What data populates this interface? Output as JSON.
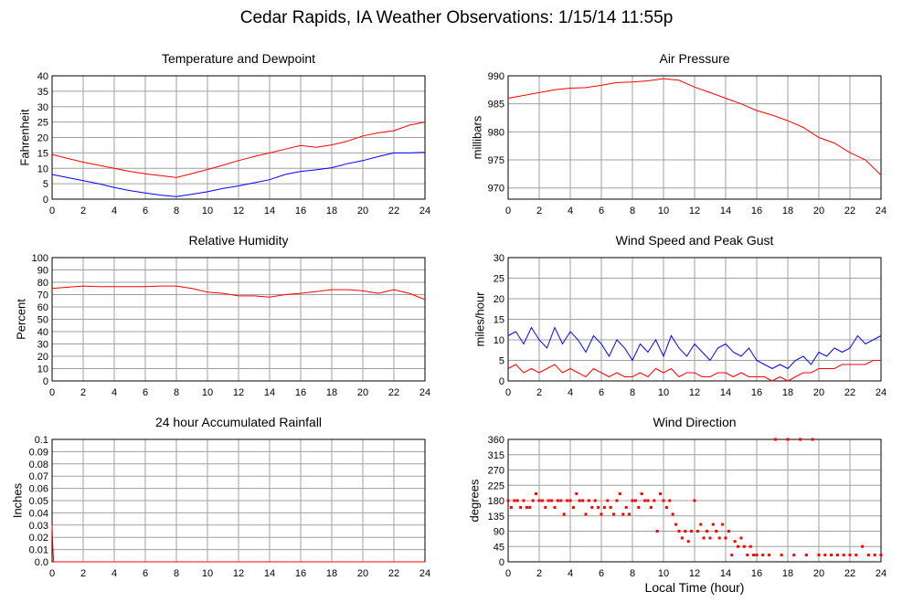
{
  "page": {
    "title": "Cedar Rapids, IA Weather Observations: 1/15/14 11:55p",
    "xaxis_label": "Local Time (hour)"
  },
  "colors": {
    "red": "#ff0000",
    "blue": "#0000ff",
    "grid": "#a0a0a0",
    "axis": "#000000"
  },
  "chart_data": [
    {
      "id": "temp",
      "type": "line",
      "title": "Temperature and Dewpoint",
      "ylabel": "Fahrenheit",
      "xlim": [
        0,
        24
      ],
      "ylim": [
        0,
        40
      ],
      "yticks": [
        0,
        5,
        10,
        15,
        20,
        25,
        30,
        35,
        40
      ],
      "xticks": [
        0,
        2,
        4,
        6,
        8,
        10,
        12,
        14,
        16,
        18,
        20,
        22,
        24
      ],
      "grid": true,
      "series": [
        {
          "color": "#ff0000",
          "x": [
            0,
            1,
            2,
            3,
            4,
            5,
            6,
            7,
            8,
            9,
            10,
            11,
            12,
            13,
            14,
            15,
            16,
            17,
            18,
            19,
            20,
            21,
            22,
            23,
            24
          ],
          "values": [
            14.5,
            13.2,
            12,
            11,
            10,
            9,
            8.2,
            7.6,
            7,
            8.3,
            9.6,
            11,
            12.5,
            13.8,
            15,
            16.2,
            17.4,
            16.8,
            17.6,
            18.8,
            20.5,
            21.5,
            22.2,
            24,
            25
          ]
        },
        {
          "color": "#0000ff",
          "x": [
            0,
            1,
            2,
            3,
            4,
            5,
            6,
            7,
            8,
            9,
            10,
            11,
            12,
            13,
            14,
            15,
            16,
            17,
            18,
            19,
            20,
            21,
            22,
            23,
            24
          ],
          "values": [
            8,
            7,
            6,
            5,
            3.8,
            2.8,
            2,
            1.3,
            0.8,
            1.6,
            2.4,
            3.5,
            4.3,
            5.3,
            6.3,
            8,
            9,
            9.5,
            10.2,
            11.5,
            12.5,
            13.8,
            15,
            15,
            15.2
          ]
        }
      ]
    },
    {
      "id": "pressure",
      "type": "line",
      "title": "Air Pressure",
      "ylabel": "millibars",
      "xlim": [
        0,
        24
      ],
      "ylim": [
        968,
        990
      ],
      "yticks": [
        970,
        975,
        980,
        985,
        990
      ],
      "xticks": [
        0,
        2,
        4,
        6,
        8,
        10,
        12,
        14,
        16,
        18,
        20,
        22,
        24
      ],
      "grid": true,
      "series": [
        {
          "color": "#ff0000",
          "x": [
            0,
            1,
            2,
            3,
            4,
            5,
            6,
            7,
            8,
            9,
            10,
            11,
            12,
            13,
            14,
            15,
            16,
            17,
            18,
            19,
            20,
            21,
            22,
            23,
            24
          ],
          "values": [
            986,
            986.5,
            987,
            987.5,
            987.8,
            987.9,
            988.3,
            988.8,
            988.9,
            989.1,
            989.5,
            989.2,
            988,
            987,
            986,
            985,
            983.8,
            983,
            982,
            980.8,
            979,
            978,
            976.3,
            975,
            972.3
          ]
        }
      ]
    },
    {
      "id": "humidity",
      "type": "line",
      "title": "Relative Humidity",
      "ylabel": "Percent",
      "xlim": [
        0,
        24
      ],
      "ylim": [
        0,
        100
      ],
      "yticks": [
        0,
        10,
        20,
        30,
        40,
        50,
        60,
        70,
        80,
        90,
        100
      ],
      "xticks": [
        0,
        2,
        4,
        6,
        8,
        10,
        12,
        14,
        16,
        18,
        20,
        22,
        24
      ],
      "grid": true,
      "series": [
        {
          "color": "#ff0000",
          "x": [
            0,
            1,
            2,
            3,
            4,
            5,
            6,
            7,
            8,
            9,
            10,
            11,
            12,
            13,
            14,
            15,
            16,
            17,
            18,
            19,
            20,
            21,
            22,
            23,
            24
          ],
          "values": [
            75,
            76,
            77,
            76.5,
            76.5,
            76.5,
            76.5,
            77,
            77,
            75,
            72,
            71,
            69,
            69,
            68,
            70,
            71,
            72.5,
            74,
            74,
            73,
            71,
            74,
            71,
            66
          ]
        }
      ]
    },
    {
      "id": "wind",
      "type": "line",
      "title": "Wind Speed and Peak Gust",
      "ylabel": "miles/hour",
      "xlim": [
        0,
        24
      ],
      "ylim": [
        0,
        30
      ],
      "yticks": [
        0,
        5,
        10,
        15,
        20,
        25,
        30
      ],
      "xticks": [
        0,
        2,
        4,
        6,
        8,
        10,
        12,
        14,
        16,
        18,
        20,
        22,
        24
      ],
      "grid": true,
      "series": [
        {
          "color": "#0000ff",
          "x": [
            0,
            0.5,
            1,
            1.5,
            2,
            2.5,
            3,
            3.5,
            4,
            4.5,
            5,
            5.5,
            6,
            6.5,
            7,
            7.5,
            8,
            8.5,
            9,
            9.5,
            10,
            10.5,
            11,
            11.5,
            12,
            12.5,
            13,
            13.5,
            14,
            14.5,
            15,
            15.5,
            16,
            16.5,
            17,
            17.5,
            18,
            18.5,
            19,
            19.5,
            20,
            20.5,
            21,
            21.5,
            22,
            22.5,
            23,
            23.5,
            24
          ],
          "values": [
            11,
            12,
            9,
            13,
            10,
            8,
            13,
            9,
            12,
            10,
            7,
            11,
            9,
            6,
            10,
            8,
            5,
            9,
            7,
            10,
            6,
            11,
            8,
            6,
            9,
            7,
            5,
            8,
            9,
            7,
            6,
            8,
            5,
            4,
            3,
            4,
            3,
            5,
            6,
            4,
            7,
            6,
            8,
            7,
            8,
            11,
            9,
            10,
            11
          ]
        },
        {
          "color": "#ff0000",
          "x": [
            0,
            0.5,
            1,
            1.5,
            2,
            2.5,
            3,
            3.5,
            4,
            4.5,
            5,
            5.5,
            6,
            6.5,
            7,
            7.5,
            8,
            8.5,
            9,
            9.5,
            10,
            10.5,
            11,
            11.5,
            12,
            12.5,
            13,
            13.5,
            14,
            14.5,
            15,
            15.5,
            16,
            16.5,
            17,
            17.5,
            18,
            18.5,
            19,
            19.5,
            20,
            20.5,
            21,
            21.5,
            22,
            22.5,
            23,
            23.5,
            24
          ],
          "values": [
            3,
            4,
            2,
            3,
            2,
            3,
            4,
            2,
            3,
            2,
            1,
            3,
            2,
            1,
            2,
            1,
            1,
            2,
            1,
            3,
            2,
            3,
            1,
            2,
            2,
            1,
            1,
            2,
            2,
            1,
            2,
            1,
            1,
            1,
            0,
            1,
            0,
            1,
            2,
            2,
            3,
            3,
            3,
            4,
            4,
            4,
            4,
            5,
            5
          ]
        }
      ]
    },
    {
      "id": "rain",
      "type": "line",
      "title": "24 hour Accumulated Rainfall",
      "ylabel": "Inches",
      "xlim": [
        0,
        24
      ],
      "ylim": [
        0,
        0.1
      ],
      "yticks": [
        0,
        0.01,
        0.02,
        0.03,
        0.04,
        0.05,
        0.06,
        0.07,
        0.08,
        0.09,
        0.1
      ],
      "ytick_labels": [
        "0.0",
        "0.01",
        "0.02",
        "0.03",
        "0.04",
        "0.05",
        "0.06",
        "0.07",
        "0.08",
        "0.09",
        "0.1"
      ],
      "xticks": [
        0,
        2,
        4,
        6,
        8,
        10,
        12,
        14,
        16,
        18,
        20,
        22,
        24
      ],
      "grid": true,
      "series": [
        {
          "color": "#ff0000",
          "x": [
            0,
            0.05,
            0.1,
            0.2,
            24
          ],
          "values": [
            0.03,
            0.01,
            0.0,
            0.0,
            0.0
          ]
        }
      ]
    },
    {
      "id": "direction",
      "type": "scatter",
      "title": "Wind Direction",
      "ylabel": "degrees",
      "xlim": [
        0,
        24
      ],
      "ylim": [
        0,
        360
      ],
      "yticks": [
        0,
        45,
        90,
        135,
        180,
        225,
        270,
        315,
        360
      ],
      "xticks": [
        0,
        2,
        4,
        6,
        8,
        10,
        12,
        14,
        16,
        18,
        20,
        22,
        24
      ],
      "grid": true,
      "series": [
        {
          "color": "#ff0000",
          "points": [
            [
              0.0,
              180
            ],
            [
              0.2,
              160
            ],
            [
              0.4,
              180
            ],
            [
              0.6,
              180
            ],
            [
              0.8,
              160
            ],
            [
              1.0,
              180
            ],
            [
              1.2,
              160
            ],
            [
              1.4,
              160
            ],
            [
              1.6,
              180
            ],
            [
              1.8,
              200
            ],
            [
              2.0,
              180
            ],
            [
              2.2,
              180
            ],
            [
              2.4,
              160
            ],
            [
              2.6,
              180
            ],
            [
              2.8,
              180
            ],
            [
              3.0,
              160
            ],
            [
              3.2,
              180
            ],
            [
              3.4,
              180
            ],
            [
              3.6,
              140
            ],
            [
              3.8,
              180
            ],
            [
              4.0,
              180
            ],
            [
              4.2,
              160
            ],
            [
              4.4,
              200
            ],
            [
              4.6,
              180
            ],
            [
              4.8,
              180
            ],
            [
              5.0,
              140
            ],
            [
              5.2,
              180
            ],
            [
              5.4,
              160
            ],
            [
              5.6,
              180
            ],
            [
              5.8,
              160
            ],
            [
              6.0,
              140
            ],
            [
              6.2,
              160
            ],
            [
              6.4,
              180
            ],
            [
              6.6,
              160
            ],
            [
              6.8,
              140
            ],
            [
              7.0,
              180
            ],
            [
              7.2,
              200
            ],
            [
              7.4,
              140
            ],
            [
              7.6,
              160
            ],
            [
              7.8,
              140
            ],
            [
              8.0,
              180
            ],
            [
              8.2,
              180
            ],
            [
              8.4,
              160
            ],
            [
              8.6,
              200
            ],
            [
              8.8,
              180
            ],
            [
              9.0,
              180
            ],
            [
              9.2,
              160
            ],
            [
              9.4,
              180
            ],
            [
              9.6,
              90
            ],
            [
              9.8,
              200
            ],
            [
              10.0,
              180
            ],
            [
              10.2,
              160
            ],
            [
              10.4,
              180
            ],
            [
              10.6,
              140
            ],
            [
              10.8,
              110
            ],
            [
              11.0,
              90
            ],
            [
              11.2,
              70
            ],
            [
              11.4,
              90
            ],
            [
              11.6,
              60
            ],
            [
              11.8,
              90
            ],
            [
              12.0,
              180
            ],
            [
              12.2,
              90
            ],
            [
              12.4,
              110
            ],
            [
              12.6,
              70
            ],
            [
              12.8,
              90
            ],
            [
              13.0,
              70
            ],
            [
              13.2,
              110
            ],
            [
              13.4,
              90
            ],
            [
              13.6,
              70
            ],
            [
              13.8,
              110
            ],
            [
              14.0,
              70
            ],
            [
              14.2,
              90
            ],
            [
              14.4,
              20
            ],
            [
              14.6,
              60
            ],
            [
              14.8,
              45
            ],
            [
              15.0,
              70
            ],
            [
              15.2,
              45
            ],
            [
              15.4,
              20
            ],
            [
              15.6,
              45
            ],
            [
              15.8,
              20
            ],
            [
              16.0,
              20
            ],
            [
              16.4,
              20
            ],
            [
              16.8,
              20
            ],
            [
              17.2,
              360
            ],
            [
              17.6,
              20
            ],
            [
              18.0,
              360
            ],
            [
              18.4,
              20
            ],
            [
              18.8,
              360
            ],
            [
              19.2,
              20
            ],
            [
              19.6,
              360
            ],
            [
              20.0,
              20
            ],
            [
              20.4,
              20
            ],
            [
              20.8,
              20
            ],
            [
              21.2,
              20
            ],
            [
              21.6,
              20
            ],
            [
              22.0,
              20
            ],
            [
              22.4,
              20
            ],
            [
              22.8,
              45
            ],
            [
              23.2,
              20
            ],
            [
              23.6,
              20
            ],
            [
              24.0,
              20
            ]
          ]
        }
      ]
    }
  ]
}
